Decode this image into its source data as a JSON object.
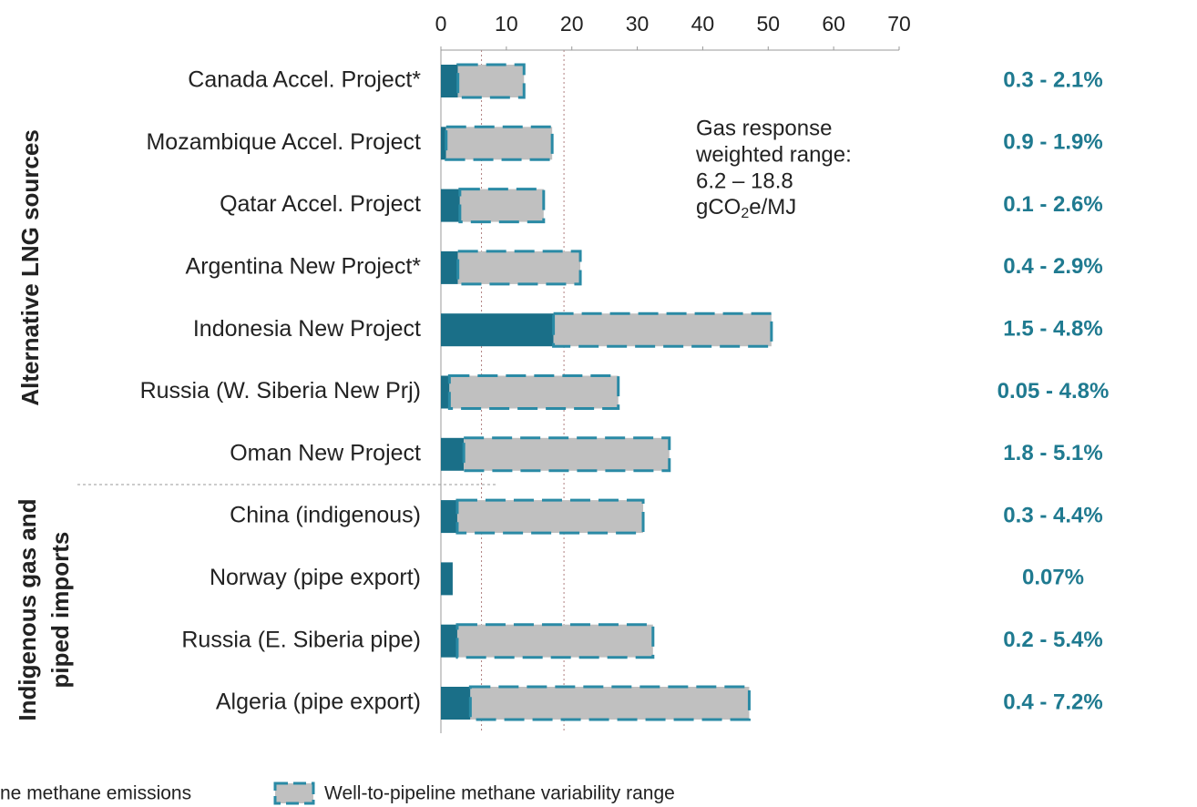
{
  "chart_data": {
    "type": "stacked-range-bar",
    "orientation": "horizontal",
    "categories": [
      "Canada Accel. Project*",
      "Mozambique Accel. Project",
      "Qatar Accel. Project",
      "Argentina New Project*",
      "Indonesia New Project",
      "Russia (W. Siberia New Prj)",
      "Oman New Project",
      "China (indigenous)",
      "Norway (pipe export)",
      "Russia (E. Siberia pipe)",
      "Algeria (pipe export)"
    ],
    "series": [
      {
        "name": "ne methane emissions",
        "color": "#1a6f88",
        "values": [
          2.6,
          0.8,
          2.9,
          2.6,
          17.2,
          1.3,
          3.5,
          2.5,
          1.8,
          2.5,
          4.5
        ]
      },
      {
        "name": "Well-to-pipeline methane variability range",
        "color": "#c0c0c0",
        "border": "#2a8aa5",
        "values": [
          10.1,
          16.2,
          12.8,
          18.7,
          33.3,
          25.8,
          31.4,
          28.4,
          0,
          29.9,
          42.6
        ]
      }
    ],
    "range_labels": [
      "0.3 - 2.1%",
      "0.9 - 1.9%",
      "0.1 - 2.6%",
      "0.4 - 2.9%",
      "1.5 - 4.8%",
      "0.05 - 4.8%",
      "1.8 - 5.1%",
      "0.3 - 4.4%",
      "0.07%",
      "0.2 - 5.4%",
      "0.4 - 7.2%"
    ],
    "groups": [
      {
        "lines": [
          "Alternative LNG sources"
        ],
        "rows": [
          0,
          6
        ]
      },
      {
        "lines": [
          "Indigenous gas and",
          "piped imports"
        ],
        "rows": [
          7,
          10
        ]
      }
    ],
    "annotation_lines": [
      "Gas response",
      "weighted range:",
      "6.2 – 18.8"
    ],
    "annotation_unit": {
      "base": "gCO",
      "sub": "2",
      "rest": "e/MJ"
    },
    "reference_lines": [
      6.2,
      18.8
    ],
    "xlim": [
      0,
      70
    ],
    "xticks": [
      0,
      10,
      20,
      30,
      40,
      50,
      60,
      70
    ]
  }
}
